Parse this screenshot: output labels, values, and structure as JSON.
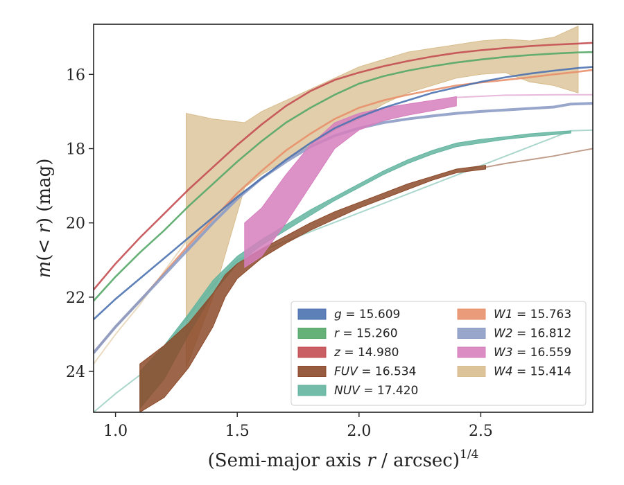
{
  "chart_data": {
    "type": "line",
    "xlabel": "(Semi-major axis r / arcsec)^{1/4}",
    "xlabel_parts": {
      "main": "(Semi-major axis ",
      "var": "r",
      "rest": " / arcsec)",
      "sup": "1/4"
    },
    "ylabel": "m(<r) (mag)",
    "ylabel_parts": {
      "m": "m",
      "open": "(",
      "lt": "< ",
      "r": "r",
      "close": ")",
      "unit": " (mag)"
    },
    "xlim": [
      0.91,
      2.96
    ],
    "ylim": [
      25.1,
      14.65
    ],
    "y_inverted": true,
    "x_ticks": [
      1.0,
      1.5,
      2.0,
      2.5
    ],
    "x_tick_labels": [
      "1.0",
      "1.5",
      "2.0",
      "2.5"
    ],
    "y_ticks": [
      16,
      18,
      20,
      22,
      24
    ],
    "y_tick_labels": [
      "16",
      "18",
      "20",
      "22",
      "24"
    ],
    "grid": false,
    "legend_position": "bottom-right",
    "series": [
      {
        "name": "g",
        "label_value": "15.609",
        "color": "#4c72b0",
        "kind": "line",
        "x": [
          0.91,
          1.0,
          1.1,
          1.2,
          1.3,
          1.4,
          1.5,
          1.6,
          1.7,
          1.8,
          1.9,
          2.0,
          2.1,
          2.2,
          2.3,
          2.4,
          2.5,
          2.6,
          2.7,
          2.8,
          2.9,
          2.96
        ],
        "y": [
          22.6,
          22.05,
          21.5,
          20.95,
          20.4,
          19.85,
          19.3,
          18.8,
          18.3,
          17.85,
          17.45,
          17.15,
          16.9,
          16.7,
          16.5,
          16.35,
          16.2,
          16.08,
          15.98,
          15.9,
          15.83,
          15.8
        ]
      },
      {
        "name": "r",
        "label_value": "15.260",
        "color": "#55a868",
        "kind": "line",
        "x": [
          0.91,
          1.0,
          1.1,
          1.2,
          1.3,
          1.4,
          1.5,
          1.6,
          1.7,
          1.8,
          1.9,
          2.0,
          2.1,
          2.2,
          2.3,
          2.4,
          2.5,
          2.6,
          2.7,
          2.8,
          2.9,
          2.96
        ],
        "y": [
          22.1,
          21.45,
          20.8,
          20.2,
          19.55,
          18.95,
          18.35,
          17.8,
          17.3,
          16.9,
          16.55,
          16.25,
          16.05,
          15.9,
          15.78,
          15.68,
          15.6,
          15.53,
          15.48,
          15.44,
          15.41,
          15.4
        ]
      },
      {
        "name": "z",
        "label_value": "14.980",
        "color": "#c44e52",
        "kind": "line",
        "x": [
          0.91,
          1.0,
          1.1,
          1.2,
          1.3,
          1.4,
          1.5,
          1.6,
          1.7,
          1.8,
          1.9,
          2.0,
          2.1,
          2.2,
          2.3,
          2.4,
          2.5,
          2.6,
          2.7,
          2.8,
          2.9,
          2.96
        ],
        "y": [
          21.8,
          21.1,
          20.4,
          19.75,
          19.1,
          18.5,
          17.9,
          17.35,
          16.85,
          16.45,
          16.15,
          15.95,
          15.78,
          15.64,
          15.52,
          15.42,
          15.35,
          15.29,
          15.24,
          15.2,
          15.17,
          15.15
        ]
      },
      {
        "name": "FUV",
        "label_value": "16.534",
        "color": "#8c4a2a",
        "kind": "band",
        "x": [
          1.1,
          1.2,
          1.3,
          1.4,
          1.45,
          1.5,
          1.6,
          1.7,
          1.8,
          1.9,
          2.0,
          2.1,
          2.2,
          2.3,
          2.4,
          2.52
        ],
        "y_upper": [
          23.8,
          23.3,
          22.7,
          21.9,
          21.4,
          21.1,
          20.7,
          20.35,
          20.0,
          19.7,
          19.45,
          19.2,
          18.95,
          18.75,
          18.55,
          18.45
        ],
        "y_lower": [
          25.1,
          24.7,
          23.9,
          22.8,
          22.0,
          21.5,
          20.95,
          20.55,
          20.2,
          19.9,
          19.6,
          19.35,
          19.1,
          18.85,
          18.65,
          18.55
        ],
        "extension": {
          "x": [
            2.52,
            2.6,
            2.7,
            2.8,
            2.9,
            2.96
          ],
          "y": [
            18.5,
            18.4,
            18.3,
            18.2,
            18.07,
            18.0
          ]
        }
      },
      {
        "name": "NUV",
        "label_value": "17.420",
        "color": "#64b5a0",
        "kind": "band",
        "x": [
          1.1,
          1.2,
          1.3,
          1.4,
          1.5,
          1.6,
          1.7,
          1.8,
          1.9,
          2.0,
          2.1,
          2.2,
          2.3,
          2.4,
          2.5,
          2.6,
          2.7,
          2.8,
          2.87
        ],
        "y_upper": [
          24.0,
          23.3,
          22.45,
          21.55,
          20.9,
          20.45,
          20.05,
          19.65,
          19.3,
          18.95,
          18.6,
          18.3,
          18.05,
          17.85,
          17.75,
          17.68,
          17.6,
          17.55,
          17.52
        ],
        "y_lower": [
          25.0,
          24.2,
          23.0,
          21.9,
          21.1,
          20.6,
          20.2,
          19.8,
          19.4,
          19.05,
          18.7,
          18.4,
          18.15,
          17.95,
          17.85,
          17.75,
          17.68,
          17.62,
          17.58
        ],
        "extension": {
          "x": [
            0.91,
            1.0,
            1.1,
            1.2,
            1.3,
            1.4,
            1.5,
            2.87,
            2.96
          ],
          "y": [
            25.1,
            24.6,
            24.1,
            23.4,
            22.5,
            21.7,
            21.0,
            17.52,
            17.5
          ]
        }
      },
      {
        "name": "W1",
        "label_value": "15.763",
        "color": "#e8906a",
        "kind": "line",
        "x": [
          0.91,
          1.0,
          1.1,
          1.2,
          1.3,
          1.4,
          1.5,
          1.6,
          1.7,
          1.8,
          1.9,
          2.0,
          2.1,
          2.2,
          2.3,
          2.4,
          2.5,
          2.6,
          2.7,
          2.8,
          2.9,
          2.96
        ],
        "y": [
          23.5,
          22.8,
          22.1,
          21.35,
          20.6,
          19.9,
          19.2,
          18.6,
          18.05,
          17.6,
          17.2,
          16.9,
          16.7,
          16.55,
          16.42,
          16.3,
          16.22,
          16.15,
          16.08,
          16.0,
          15.93,
          15.88
        ]
      },
      {
        "name": "W2",
        "label_value": "16.812",
        "color": "#8c9cc4",
        "kind": "line",
        "x": [
          0.91,
          1.0,
          1.1,
          1.2,
          1.3,
          1.4,
          1.5,
          1.6,
          1.7,
          1.8,
          1.9,
          2.0,
          2.1,
          2.2,
          2.3,
          2.4,
          2.5,
          2.6,
          2.7,
          2.8,
          2.87,
          2.96
        ],
        "y": [
          23.5,
          22.8,
          22.1,
          21.4,
          20.7,
          20.0,
          19.35,
          18.8,
          18.35,
          17.95,
          17.65,
          17.45,
          17.3,
          17.2,
          17.12,
          17.05,
          17.0,
          16.96,
          16.92,
          16.88,
          16.8,
          16.78
        ]
      },
      {
        "name": "W3",
        "label_value": "16.559",
        "color": "#d67fbd",
        "kind": "band",
        "x": [
          1.53,
          1.6,
          1.7,
          1.8,
          1.9,
          2.0,
          2.1,
          2.2,
          2.3,
          2.4
        ],
        "y_upper": [
          20.0,
          19.6,
          18.7,
          17.9,
          17.3,
          17.05,
          16.9,
          16.8,
          16.7,
          16.6
        ],
        "y_lower": [
          21.2,
          20.9,
          20.0,
          19.0,
          18.0,
          17.5,
          17.25,
          17.1,
          16.98,
          16.85
        ],
        "extension": {
          "x": [
            2.4,
            2.6,
            2.8,
            2.96
          ],
          "y": [
            16.62,
            16.56,
            16.55,
            16.55
          ]
        }
      },
      {
        "name": "W4",
        "label_value": "15.414",
        "color": "#d8bd8e",
        "kind": "band",
        "x": [
          1.29,
          1.4,
          1.53,
          1.6,
          1.7,
          1.8,
          1.9,
          2.0,
          2.1,
          2.2,
          2.3,
          2.4,
          2.5,
          2.6,
          2.7,
          2.8,
          2.9
        ],
        "y_upper": [
          17.05,
          17.2,
          17.3,
          17.0,
          16.7,
          16.4,
          16.1,
          15.8,
          15.6,
          15.4,
          15.3,
          15.2,
          15.1,
          15.05,
          15.1,
          15.0,
          14.7
        ],
        "y_lower": [
          23.9,
          22.0,
          19.05,
          18.7,
          18.3,
          17.9,
          17.5,
          17.2,
          16.8,
          16.5,
          16.3,
          16.1,
          16.0,
          15.95,
          16.2,
          16.3,
          16.5
        ],
        "extension": {
          "x": [
            0.91,
            1.0,
            1.1,
            1.2,
            1.29
          ],
          "y": [
            23.8,
            23.0,
            22.2,
            21.3,
            20.5
          ]
        }
      }
    ]
  }
}
